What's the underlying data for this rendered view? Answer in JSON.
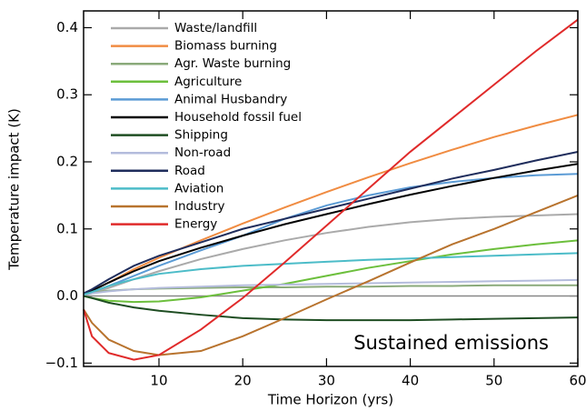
{
  "chart_data": {
    "type": "line",
    "xlabel": "Time Horizon (yrs)",
    "ylabel": "Temperature impact (K)",
    "annotation": "Sustained emissions",
    "x": [
      1,
      2,
      4,
      7,
      10,
      15,
      20,
      25,
      30,
      35,
      40,
      45,
      50,
      55,
      60
    ],
    "xlim": [
      1,
      60
    ],
    "xticks": [
      10,
      20,
      30,
      40,
      50,
      60
    ],
    "ylim": [
      -0.105,
      0.425
    ],
    "yticks": [
      {
        "value": -0.1,
        "label": "−0.1"
      },
      {
        "value": 0,
        "label": "0.0"
      },
      0.1,
      0.2,
      0.3,
      0.4
    ],
    "zero_line": true,
    "legend": "upper left",
    "series": [
      {
        "name": "Waste/landfill",
        "color": "#aaaaaa",
        "values": [
          0.001,
          0.004,
          0.012,
          0.025,
          0.037,
          0.055,
          0.07,
          0.083,
          0.094,
          0.103,
          0.11,
          0.115,
          0.118,
          0.12,
          0.122
        ]
      },
      {
        "name": "Biomass burning",
        "color": "#f08c42",
        "values": [
          0.002,
          0.008,
          0.02,
          0.04,
          0.057,
          0.083,
          0.108,
          0.132,
          0.155,
          0.177,
          0.198,
          0.218,
          0.237,
          0.254,
          0.27
        ]
      },
      {
        "name": "Agr. Waste burning",
        "color": "#8aaa7a",
        "values": [
          0.002,
          0.005,
          0.008,
          0.01,
          0.011,
          0.012,
          0.013,
          0.013,
          0.014,
          0.014,
          0.015,
          0.015,
          0.016,
          0.016,
          0.016
        ]
      },
      {
        "name": "Agriculture",
        "color": "#6cbf3c",
        "values": [
          0,
          -0.003,
          -0.007,
          -0.009,
          -0.008,
          -0.002,
          0.008,
          0.018,
          0.03,
          0.042,
          0.052,
          0.062,
          0.07,
          0.077,
          0.083
        ]
      },
      {
        "name": "Animal Husbandry",
        "color": "#5b9bd5",
        "values": [
          0.002,
          0.006,
          0.015,
          0.03,
          0.045,
          0.068,
          0.09,
          0.115,
          0.135,
          0.15,
          0.162,
          0.17,
          0.176,
          0.18,
          0.182
        ]
      },
      {
        "name": "Household fossil fuel",
        "color": "#000000",
        "values": [
          0.003,
          0.008,
          0.02,
          0.037,
          0.052,
          0.072,
          0.09,
          0.107,
          0.122,
          0.137,
          0.151,
          0.164,
          0.176,
          0.187,
          0.197
        ]
      },
      {
        "name": "Shipping",
        "color": "#1e4d22",
        "values": [
          0,
          -0.003,
          -0.01,
          -0.017,
          -0.022,
          -0.028,
          -0.033,
          -0.035,
          -0.036,
          -0.036,
          -0.036,
          -0.035,
          -0.034,
          -0.033,
          -0.032
        ]
      },
      {
        "name": "Non-road",
        "color": "#b4bcdc",
        "values": [
          0.002,
          0.004,
          0.007,
          0.01,
          0.012,
          0.014,
          0.016,
          0.017,
          0.018,
          0.019,
          0.02,
          0.021,
          0.022,
          0.023,
          0.024
        ]
      },
      {
        "name": "Road",
        "color": "#1f2d5c",
        "values": [
          0.004,
          0.01,
          0.025,
          0.045,
          0.06,
          0.08,
          0.1,
          0.115,
          0.13,
          0.145,
          0.16,
          0.175,
          0.188,
          0.202,
          0.215
        ]
      },
      {
        "name": "Aviation",
        "color": "#4cbcc8",
        "values": [
          0.002,
          0.006,
          0.015,
          0.025,
          0.033,
          0.04,
          0.045,
          0.048,
          0.051,
          0.054,
          0.056,
          0.058,
          0.06,
          0.062,
          0.064
        ]
      },
      {
        "name": "Industry",
        "color": "#b8732e",
        "values": [
          -0.02,
          -0.04,
          -0.065,
          -0.082,
          -0.088,
          -0.082,
          -0.06,
          -0.033,
          -0.005,
          0.022,
          0.05,
          0.077,
          0.1,
          0.125,
          0.15
        ]
      },
      {
        "name": "Energy",
        "color": "#e02a2a",
        "values": [
          -0.02,
          -0.06,
          -0.085,
          -0.095,
          -0.088,
          -0.05,
          -0.003,
          0.05,
          0.105,
          0.16,
          0.215,
          0.265,
          0.315,
          0.365,
          0.412
        ]
      }
    ]
  }
}
